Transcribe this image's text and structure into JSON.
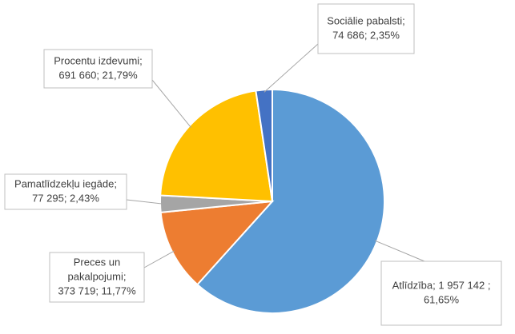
{
  "chart_data": {
    "type": "pie",
    "values": [
      1957142,
      373719,
      77295,
      691660,
      74686
    ],
    "value_labels": [
      [
        "Atlīdzība; 1 957 142 ;",
        "61,65%"
      ],
      [
        "Preces un",
        "pakalpojumi;",
        "373 719; 11,77%"
      ],
      [
        "Pamatlīdzekļu iegāde;",
        "77 295; 2,43%"
      ],
      [
        "Procentu izdevumi;",
        "691 660; 21,79%"
      ],
      [
        "Sociālie pabalsti;",
        "74 686; 2,35%"
      ]
    ],
    "colors": [
      "#5b9bd5",
      "#ed7d31",
      "#a5a5a5",
      "#ffc000",
      "#4472c4"
    ]
  }
}
